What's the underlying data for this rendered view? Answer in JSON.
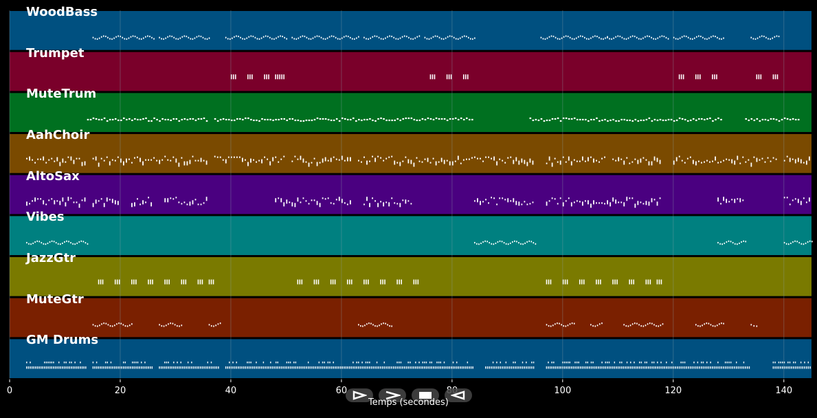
{
  "colors": {
    "background": "#000000",
    "grid": "#8aa0a8",
    "note": "#ffffff"
  },
  "transport": {
    "buttons": [
      {
        "name": "play-icon",
        "label": "play"
      },
      {
        "name": "fast-forward-icon",
        "label": "fast-forward"
      },
      {
        "name": "stop-icon",
        "label": "stop"
      },
      {
        "name": "rewind-icon",
        "label": "rewind"
      }
    ]
  },
  "chart_data": {
    "type": "piano-roll",
    "xlabel": "Temps (secondes)",
    "xlim": [
      0,
      145
    ],
    "xticks": [
      "0",
      "20",
      "40",
      "60",
      "80",
      "100",
      "120",
      "140"
    ],
    "grid": true,
    "tracks": [
      {
        "name": "WoodBass",
        "color": "#005080",
        "style": "wave",
        "segments": [
          [
            15,
            26
          ],
          [
            27,
            36
          ],
          [
            39,
            50
          ],
          [
            51,
            63
          ],
          [
            64,
            74
          ],
          [
            75,
            84
          ],
          [
            96,
            108
          ],
          [
            108,
            119
          ],
          [
            120,
            129
          ],
          [
            134,
            139
          ]
        ]
      },
      {
        "name": "Trumpet",
        "color": "#7a002a",
        "style": "sparse",
        "segments": [
          [
            40,
            41
          ],
          [
            43,
            44
          ],
          [
            46,
            47
          ],
          [
            48,
            50
          ],
          [
            76,
            77
          ],
          [
            79,
            80
          ],
          [
            82,
            83
          ],
          [
            121,
            122
          ],
          [
            124,
            125
          ],
          [
            127,
            128
          ],
          [
            135,
            136
          ],
          [
            138,
            139
          ]
        ]
      },
      {
        "name": "MuteTrum",
        "color": "#007020",
        "style": "dash",
        "segments": [
          [
            14,
            26
          ],
          [
            26,
            36
          ],
          [
            37,
            51
          ],
          [
            51,
            62
          ],
          [
            62,
            73
          ],
          [
            73,
            84
          ],
          [
            94,
            107
          ],
          [
            107,
            119
          ],
          [
            119,
            129
          ],
          [
            133,
            143
          ]
        ]
      },
      {
        "name": "AahChoir",
        "color": "#7a4a00",
        "style": "mixed",
        "segments": [
          [
            3,
            14
          ],
          [
            15,
            36
          ],
          [
            37,
            50
          ],
          [
            51,
            62
          ],
          [
            63,
            84
          ],
          [
            84,
            95
          ],
          [
            97,
            108
          ],
          [
            109,
            118
          ],
          [
            120,
            129
          ],
          [
            129,
            139
          ],
          [
            140,
            145
          ]
        ]
      },
      {
        "name": "AltoSax",
        "color": "#4a0080",
        "style": "mixed",
        "segments": [
          [
            3,
            14
          ],
          [
            15,
            20
          ],
          [
            22,
            26
          ],
          [
            28,
            36
          ],
          [
            48,
            62
          ],
          [
            64,
            73
          ],
          [
            84,
            95
          ],
          [
            97,
            118
          ],
          [
            128,
            133
          ],
          [
            140,
            145
          ]
        ]
      },
      {
        "name": "Vibes",
        "color": "#008080",
        "style": "wave",
        "segments": [
          [
            3,
            14
          ],
          [
            84,
            95
          ],
          [
            128,
            133
          ],
          [
            140,
            145
          ]
        ]
      },
      {
        "name": "JazzGtr",
        "color": "#7a7a00",
        "style": "sparse",
        "segments": [
          [
            16,
            17
          ],
          [
            19,
            20
          ],
          [
            22,
            23
          ],
          [
            25,
            26
          ],
          [
            28,
            29
          ],
          [
            31,
            32
          ],
          [
            34,
            35
          ],
          [
            36,
            37
          ],
          [
            52,
            53
          ],
          [
            55,
            56
          ],
          [
            58,
            59
          ],
          [
            61,
            62
          ],
          [
            64,
            65
          ],
          [
            67,
            68
          ],
          [
            70,
            71
          ],
          [
            73,
            74
          ],
          [
            97,
            98
          ],
          [
            100,
            101
          ],
          [
            103,
            104
          ],
          [
            106,
            107
          ],
          [
            109,
            110
          ],
          [
            112,
            113
          ],
          [
            115,
            116
          ],
          [
            117,
            118
          ]
        ]
      },
      {
        "name": "MuteGtr",
        "color": "#7a2000",
        "style": "wave",
        "segments": [
          [
            15,
            22
          ],
          [
            27,
            31
          ],
          [
            36,
            38
          ],
          [
            63,
            69
          ],
          [
            97,
            102
          ],
          [
            105,
            107
          ],
          [
            111,
            118
          ],
          [
            124,
            129
          ],
          [
            134,
            135
          ]
        ]
      },
      {
        "name": "GM Drums",
        "color": "#005080",
        "style": "drums",
        "segments": [
          [
            3,
            14
          ],
          [
            15,
            26
          ],
          [
            27,
            38
          ],
          [
            39,
            51
          ],
          [
            51,
            63
          ],
          [
            63,
            73
          ],
          [
            73,
            84
          ],
          [
            86,
            95
          ],
          [
            97,
            108
          ],
          [
            108,
            119
          ],
          [
            119,
            129
          ],
          [
            129,
            134
          ],
          [
            138,
            145
          ]
        ]
      }
    ]
  }
}
